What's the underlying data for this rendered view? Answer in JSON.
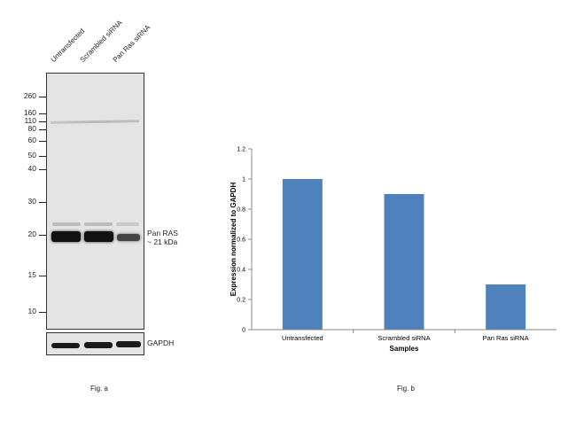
{
  "blot": {
    "lanes": [
      "Untransfected",
      "Scrambled siRNA",
      "Pan Ras siRNA"
    ],
    "markers": [
      "260",
      "160",
      "110",
      "80",
      "60",
      "50",
      "40",
      "30",
      "20",
      "15",
      "10"
    ],
    "target_label_line1": "Pan RAS",
    "target_label_line2": "~ 21 kDa",
    "loading_control": "GAPDH",
    "caption": "Fig. a"
  },
  "chart_caption": "Fig. b",
  "chart_data": {
    "type": "bar",
    "categories": [
      "Untransfected",
      "Scrambled siRNA",
      "Pan Ras siRNA"
    ],
    "values": [
      1.0,
      0.9,
      0.3
    ],
    "xlabel": "Samples",
    "ylabel": "Expression normalized to GAPDH",
    "ylim": [
      0,
      1.2
    ],
    "yticks": [
      "0",
      "0.2",
      "0.4",
      "0.6",
      "0.8",
      "1",
      "1.2"
    ],
    "bar_color": "#4f81bd",
    "grid": false
  }
}
